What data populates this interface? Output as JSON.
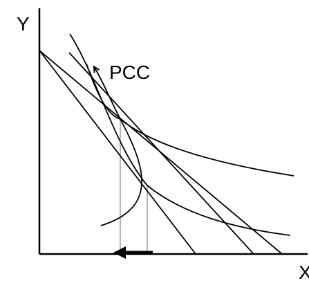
{
  "diagram": {
    "axis_y_label": "Y",
    "axis_x_label": "X",
    "curve_label": "PCC",
    "colors": {
      "ink": "#000000",
      "guide": "#b5b5b5"
    }
  }
}
